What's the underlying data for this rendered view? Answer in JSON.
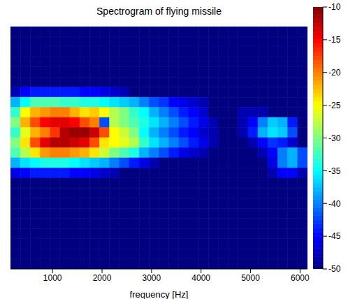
{
  "chart_data": {
    "type": "heatmap",
    "title": "Spectrogram of flying missile",
    "x_label": "frequency [Hz]",
    "x": [
      250,
      450,
      650,
      850,
      1050,
      1250,
      1450,
      1650,
      1850,
      2050,
      2250,
      2450,
      2650,
      2850,
      3050,
      3250,
      3450,
      3650,
      3850,
      4050,
      4250,
      4450,
      4650,
      4850,
      5050,
      5250,
      5450,
      5650,
      5850,
      6050
    ],
    "xlim": [
      150,
      6150
    ],
    "xticks": [
      1000,
      2000,
      3000,
      4000,
      5000,
      6000
    ],
    "ylim": [
      0,
      24
    ],
    "tick_labels": "x",
    "cells": [
      [
        -50,
        -50,
        -50,
        -50,
        -50,
        -50,
        -50,
        -50,
        -50,
        -50,
        -50,
        -50,
        -50,
        -50,
        -50,
        -50,
        -50,
        -50,
        -50,
        -50,
        -50,
        -50,
        -50,
        -50,
        -50,
        -50,
        -50,
        -50,
        -50,
        -50
      ],
      [
        -50,
        -50,
        -50,
        -50,
        -50,
        -50,
        -50,
        -50,
        -50,
        -50,
        -50,
        -50,
        -50,
        -50,
        -50,
        -50,
        -50,
        -50,
        -50,
        -50,
        -50,
        -50,
        -50,
        -50,
        -50,
        -50,
        -50,
        -50,
        -50,
        -50
      ],
      [
        -50,
        -50,
        -50,
        -50,
        -50,
        -50,
        -50,
        -50,
        -50,
        -50,
        -50,
        -50,
        -50,
        -50,
        -50,
        -50,
        -50,
        -50,
        -50,
        -50,
        -50,
        -50,
        -50,
        -50,
        -50,
        -50,
        -50,
        -50,
        -50,
        -50
      ],
      [
        -50,
        -50,
        -50,
        -50,
        -50,
        -50,
        -50,
        -50,
        -50,
        -50,
        -50,
        -50,
        -50,
        -50,
        -50,
        -50,
        -50,
        -50,
        -50,
        -50,
        -50,
        -50,
        -50,
        -50,
        -50,
        -50,
        -50,
        -50,
        -50,
        -50
      ],
      [
        -50,
        -50,
        -50,
        -50,
        -50,
        -50,
        -50,
        -50,
        -50,
        -50,
        -50,
        -50,
        -50,
        -50,
        -50,
        -50,
        -50,
        -50,
        -50,
        -50,
        -50,
        -50,
        -50,
        -50,
        -50,
        -50,
        -50,
        -50,
        -50,
        -50
      ],
      [
        -50,
        -50,
        -50,
        -50,
        -50,
        -50,
        -50,
        -50,
        -50,
        -50,
        -50,
        -50,
        -50,
        -50,
        -50,
        -50,
        -50,
        -50,
        -50,
        -50,
        -50,
        -50,
        -50,
        -50,
        -50,
        -50,
        -50,
        -50,
        -50,
        -50
      ],
      [
        -48,
        -45,
        -44,
        -44,
        -44,
        -44,
        -44,
        -45,
        -45,
        -46,
        -47,
        -48,
        -50,
        -50,
        -50,
        -50,
        -50,
        -50,
        -50,
        -50,
        -50,
        -50,
        -50,
        -50,
        -50,
        -50,
        -50,
        -50,
        -50,
        -50
      ],
      [
        -38,
        -35,
        -32,
        -32,
        -32,
        -33,
        -33,
        -34,
        -34,
        -35,
        -36,
        -37,
        -38,
        -40,
        -42,
        -43,
        -45,
        -46,
        -47,
        -48,
        -50,
        -50,
        -50,
        -50,
        -50,
        -50,
        -50,
        -50,
        -50,
        -50
      ],
      [
        -33,
        -25,
        -22,
        -21,
        -20,
        -20,
        -22,
        -24,
        -23,
        -25,
        -28,
        -30,
        -33,
        -35,
        -38,
        -40,
        -42,
        -44,
        -45,
        -47,
        -50,
        -50,
        -50,
        -48,
        -48,
        -48,
        -50,
        -50,
        -50,
        -50
      ],
      [
        -30,
        -22,
        -18,
        -15,
        -14,
        -14,
        -15,
        -18,
        -20,
        -42,
        -28,
        -30,
        -32,
        -34,
        -36,
        -38,
        -40,
        -42,
        -44,
        -46,
        -48,
        -50,
        -50,
        -48,
        -45,
        -40,
        -37,
        -38,
        -44,
        -50
      ],
      [
        -33,
        -26,
        -22,
        -20,
        -17,
        -12,
        -11,
        -11,
        -13,
        -18,
        -25,
        -27,
        -30,
        -35,
        -38,
        -40,
        -42,
        -44,
        -45,
        -47,
        -48,
        -50,
        -50,
        -48,
        -44,
        -38,
        -36,
        -37,
        -42,
        -50
      ],
      [
        -30,
        -24,
        -18,
        -14,
        -12,
        -12,
        -13,
        -14,
        -18,
        -24,
        -25,
        -26,
        -28,
        -33,
        -36,
        -38,
        -40,
        -42,
        -44,
        -46,
        -48,
        -50,
        -50,
        -50,
        -48,
        -45,
        -43,
        -44,
        -47,
        -50
      ],
      [
        -32,
        -28,
        -24,
        -21,
        -20,
        -20,
        -21,
        -22,
        -24,
        -27,
        -30,
        -32,
        -34,
        -38,
        -40,
        -42,
        -44,
        -46,
        -47,
        -48,
        -50,
        -50,
        -50,
        -50,
        -50,
        -48,
        -45,
        -40,
        -38,
        -42
      ],
      [
        -38,
        -36,
        -35,
        -34,
        -34,
        -34,
        -35,
        -36,
        -37,
        -38,
        -40,
        -42,
        -44,
        -46,
        -48,
        -50,
        -50,
        -50,
        -50,
        -50,
        -50,
        -50,
        -50,
        -50,
        -50,
        -50,
        -46,
        -40,
        -38,
        -42
      ],
      [
        -46,
        -45,
        -44,
        -44,
        -44,
        -44,
        -45,
        -45,
        -46,
        -47,
        -48,
        -50,
        -50,
        -50,
        -50,
        -50,
        -50,
        -50,
        -50,
        -50,
        -50,
        -50,
        -50,
        -50,
        -50,
        -50,
        -48,
        -45,
        -45,
        -48
      ],
      [
        -50,
        -50,
        -50,
        -50,
        -50,
        -50,
        -50,
        -50,
        -50,
        -50,
        -50,
        -50,
        -50,
        -50,
        -50,
        -50,
        -50,
        -50,
        -50,
        -50,
        -50,
        -50,
        -50,
        -50,
        -50,
        -50,
        -50,
        -50,
        -50,
        -50
      ],
      [
        -50,
        -50,
        -50,
        -50,
        -50,
        -50,
        -50,
        -50,
        -50,
        -50,
        -50,
        -50,
        -50,
        -50,
        -50,
        -50,
        -50,
        -50,
        -50,
        -50,
        -50,
        -50,
        -50,
        -50,
        -50,
        -50,
        -50,
        -50,
        -50,
        -50
      ],
      [
        -50,
        -50,
        -50,
        -50,
        -50,
        -50,
        -50,
        -50,
        -50,
        -50,
        -50,
        -50,
        -50,
        -50,
        -50,
        -50,
        -50,
        -50,
        -50,
        -50,
        -50,
        -50,
        -50,
        -50,
        -50,
        -50,
        -50,
        -50,
        -50,
        -50
      ],
      [
        -50,
        -50,
        -50,
        -50,
        -50,
        -50,
        -50,
        -50,
        -50,
        -50,
        -50,
        -50,
        -50,
        -50,
        -50,
        -50,
        -50,
        -50,
        -50,
        -50,
        -50,
        -50,
        -50,
        -50,
        -50,
        -50,
        -50,
        -50,
        -50,
        -50
      ],
      [
        -50,
        -50,
        -50,
        -50,
        -50,
        -50,
        -50,
        -50,
        -50,
        -50,
        -50,
        -50,
        -50,
        -50,
        -50,
        -50,
        -50,
        -50,
        -50,
        -50,
        -50,
        -50,
        -50,
        -50,
        -50,
        -50,
        -50,
        -50,
        -50,
        -50
      ],
      [
        -50,
        -50,
        -50,
        -50,
        -50,
        -50,
        -50,
        -50,
        -50,
        -50,
        -50,
        -50,
        -50,
        -50,
        -50,
        -50,
        -50,
        -50,
        -50,
        -50,
        -50,
        -50,
        -50,
        -50,
        -50,
        -50,
        -50,
        -50,
        -50,
        -50
      ],
      [
        -50,
        -50,
        -50,
        -50,
        -50,
        -50,
        -50,
        -50,
        -50,
        -50,
        -50,
        -50,
        -50,
        -50,
        -50,
        -50,
        -50,
        -50,
        -50,
        -50,
        -50,
        -50,
        -50,
        -50,
        -50,
        -50,
        -50,
        -50,
        -50,
        -50
      ],
      [
        -50,
        -50,
        -50,
        -50,
        -50,
        -50,
        -50,
        -50,
        -50,
        -50,
        -50,
        -50,
        -50,
        -50,
        -50,
        -50,
        -50,
        -50,
        -50,
        -50,
        -50,
        -50,
        -50,
        -50,
        -50,
        -50,
        -50,
        -50,
        -50,
        -50
      ],
      [
        -50,
        -50,
        -50,
        -50,
        -50,
        -50,
        -50,
        -50,
        -50,
        -50,
        -50,
        -50,
        -50,
        -50,
        -50,
        -50,
        -50,
        -50,
        -50,
        -50,
        -50,
        -50,
        -50,
        -50,
        -50,
        -50,
        -50,
        -50,
        -50,
        -50
      ]
    ],
    "colorbar": {
      "range": [
        -50,
        -10
      ],
      "ticks": [
        -10,
        -15,
        -20,
        -25,
        -30,
        -35,
        -40,
        -45,
        -50
      ]
    }
  }
}
